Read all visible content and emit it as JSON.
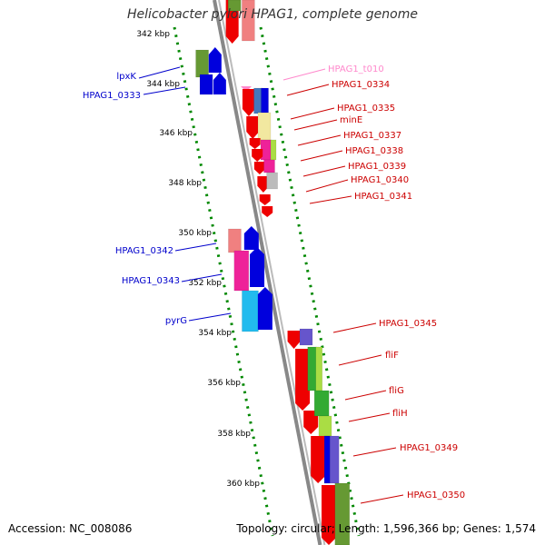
{
  "title": "Helicobacter pylori HPAG1, complete genome",
  "footer": {
    "accession": "Accession: NC_008086",
    "summary": "Topology: circular; Length: 1,596,366 bp; Genes: 1,574"
  },
  "colors": {
    "left_label": "#0000cc",
    "right_label": "#cc0000",
    "trna_label": "#ff88cc",
    "axis": "#008800",
    "backbone": "#888888"
  },
  "ticks": [
    "342 kbp",
    "344 kbp",
    "346 kbp",
    "348 kbp",
    "350 kbp",
    "352 kbp",
    "354 kbp",
    "356 kbp",
    "358 kbp",
    "360 kbp"
  ],
  "left_labels": [
    "lpxK",
    "HPAG1_0333",
    "HPAG1_0342",
    "HPAG1_0343",
    "pyrG"
  ],
  "right_labels": [
    {
      "text": "HPAG1_t010",
      "kind": "trna"
    },
    {
      "text": "HPAG1_0334",
      "kind": "gene"
    },
    {
      "text": "HPAG1_0335",
      "kind": "gene"
    },
    {
      "text": "minE",
      "kind": "gene"
    },
    {
      "text": "HPAG1_0337",
      "kind": "gene"
    },
    {
      "text": "HPAG1_0338",
      "kind": "gene"
    },
    {
      "text": "HPAG1_0339",
      "kind": "gene"
    },
    {
      "text": "HPAG1_0340",
      "kind": "gene"
    },
    {
      "text": "HPAG1_0341",
      "kind": "gene"
    },
    {
      "text": "HPAG1_0345",
      "kind": "gene"
    },
    {
      "text": "fliF",
      "kind": "gene"
    },
    {
      "text": "fliG",
      "kind": "gene"
    },
    {
      "text": "fliH",
      "kind": "gene"
    },
    {
      "text": "HPAG1_0349",
      "kind": "gene"
    },
    {
      "text": "HPAG1_0350",
      "kind": "gene"
    }
  ]
}
